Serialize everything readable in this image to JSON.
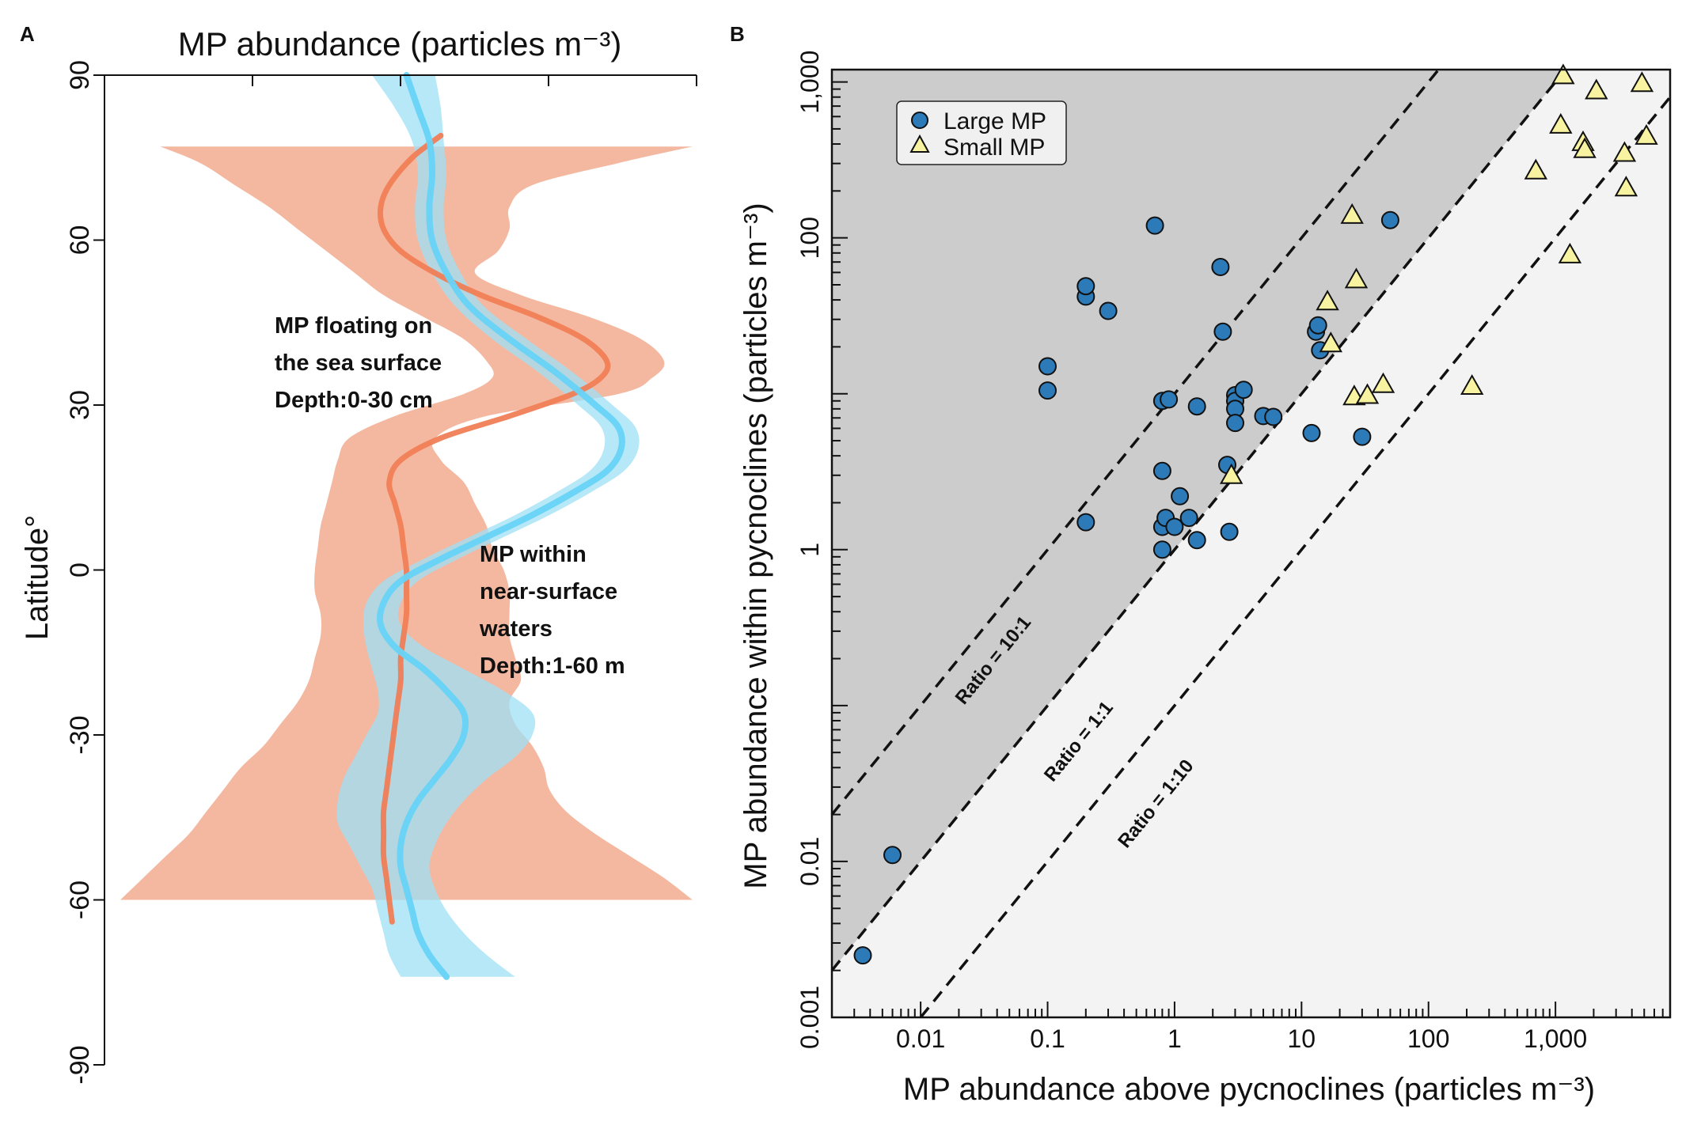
{
  "colors": {
    "orange_line": "#f07e56",
    "orange_band": "#f4b8a0",
    "blue_line": "#67d3f5",
    "blue_band": "#9fe0f6",
    "dark_region": "#cccccc",
    "light_region": "#f3f3f3",
    "large_mp": "#2c7ab8",
    "small_mp": "#f7f3a0",
    "label_orange": "#f28a65",
    "label_blue": "#7dd8f4"
  },
  "chart_data": [
    {
      "panel": "A",
      "type": "line",
      "title": "MP abundance (particles m⁻³)",
      "ylabel": "Latitude°",
      "ylim": [
        -90,
        90
      ],
      "yticks": [
        90,
        60,
        30,
        0,
        -30,
        -60,
        -90
      ],
      "ytick_labels": [
        "90",
        "60",
        "30",
        "0",
        "-30",
        "-60",
        "-90"
      ],
      "xticks_count": 5,
      "series": [
        {
          "name": "surface",
          "label_lines": [
            "MP floating on",
            "the sea surface",
            "Depth:0-30 cm"
          ],
          "lat": [
            79,
            75,
            70,
            66,
            62,
            58,
            54,
            50,
            46,
            42,
            38,
            35,
            32,
            28,
            24,
            20,
            16,
            12,
            8,
            4,
            0,
            -4,
            -8,
            -12,
            -16,
            -20,
            -24,
            -28,
            -32,
            -36,
            -40,
            -44,
            -48,
            -52,
            -56,
            -60,
            -64
          ],
          "mid": [
            0.56,
            0.51,
            0.47,
            0.455,
            0.46,
            0.49,
            0.55,
            0.63,
            0.73,
            0.81,
            0.85,
            0.84,
            0.79,
            0.68,
            0.56,
            0.49,
            0.47,
            0.48,
            0.49,
            0.495,
            0.5,
            0.5,
            0.5,
            0.495,
            0.49,
            0.49,
            0.485,
            0.48,
            0.475,
            0.47,
            0.465,
            0.46,
            0.46,
            0.46,
            0.465,
            0.47,
            0.475
          ],
          "band_lat": [
            77,
            74,
            70,
            66,
            62,
            58,
            54,
            50,
            46,
            42,
            38,
            35,
            32,
            28,
            24,
            20,
            16,
            12,
            8,
            4,
            0,
            -4,
            -8,
            -12,
            -16,
            -20,
            -24,
            -28,
            -32,
            -36,
            -40,
            -44,
            -48,
            -52,
            -56,
            -60
          ],
          "lower": [
            0.07,
            0.14,
            0.2,
            0.26,
            0.31,
            0.36,
            0.41,
            0.46,
            0.53,
            0.6,
            0.64,
            0.65,
            0.6,
            0.48,
            0.4,
            0.38,
            0.37,
            0.36,
            0.35,
            0.345,
            0.34,
            0.34,
            0.35,
            0.35,
            0.34,
            0.33,
            0.31,
            0.28,
            0.25,
            0.21,
            0.18,
            0.15,
            0.12,
            0.08,
            0.04,
            0.0
          ],
          "upper": [
            1.0,
            0.87,
            0.72,
            0.68,
            0.68,
            0.66,
            0.62,
            0.7,
            0.82,
            0.91,
            0.95,
            0.93,
            0.87,
            0.64,
            0.55,
            0.56,
            0.6,
            0.62,
            0.64,
            0.65,
            0.67,
            0.68,
            0.68,
            0.68,
            0.69,
            0.7,
            0.68,
            0.69,
            0.72,
            0.74,
            0.75,
            0.78,
            0.83,
            0.89,
            0.95,
            1.0
          ]
        },
        {
          "name": "near-surface",
          "label_lines": [
            "MP within",
            "near-surface",
            "waters",
            "Depth:1-60 m"
          ],
          "lat": [
            90,
            84,
            78,
            72,
            66,
            60,
            54,
            48,
            42,
            36,
            30,
            26,
            22,
            18,
            14,
            10,
            6,
            2,
            -2,
            -6,
            -10,
            -14,
            -18,
            -22,
            -26,
            -30,
            -34,
            -38,
            -42,
            -46,
            -50,
            -54,
            -58,
            -62,
            -66,
            -70,
            -74
          ],
          "mid": [
            0.5,
            0.52,
            0.54,
            0.545,
            0.54,
            0.545,
            0.57,
            0.61,
            0.68,
            0.76,
            0.83,
            0.87,
            0.875,
            0.85,
            0.79,
            0.72,
            0.64,
            0.56,
            0.49,
            0.46,
            0.455,
            0.48,
            0.53,
            0.57,
            0.6,
            0.6,
            0.58,
            0.55,
            0.52,
            0.5,
            0.49,
            0.49,
            0.5,
            0.51,
            0.52,
            0.54,
            0.57
          ],
          "band_lat": [
            90,
            84,
            78,
            72,
            66,
            60,
            54,
            48,
            42,
            36,
            30,
            26,
            22,
            18,
            14,
            10,
            6,
            2,
            -2,
            -6,
            -10,
            -14,
            -18,
            -22,
            -26,
            -30,
            -34,
            -38,
            -42,
            -46,
            -50,
            -54,
            -58,
            -62,
            -66,
            -70,
            -74
          ],
          "lower": [
            0.44,
            0.48,
            0.51,
            0.52,
            0.515,
            0.52,
            0.545,
            0.585,
            0.65,
            0.73,
            0.8,
            0.84,
            0.845,
            0.82,
            0.76,
            0.69,
            0.61,
            0.53,
            0.46,
            0.43,
            0.425,
            0.43,
            0.44,
            0.45,
            0.45,
            0.43,
            0.41,
            0.39,
            0.38,
            0.38,
            0.4,
            0.42,
            0.44,
            0.45,
            0.46,
            0.47,
            0.49
          ],
          "upper": [
            0.55,
            0.56,
            0.565,
            0.57,
            0.565,
            0.57,
            0.595,
            0.635,
            0.71,
            0.79,
            0.86,
            0.9,
            0.905,
            0.88,
            0.82,
            0.75,
            0.67,
            0.59,
            0.52,
            0.49,
            0.49,
            0.53,
            0.6,
            0.67,
            0.72,
            0.72,
            0.69,
            0.64,
            0.6,
            0.57,
            0.55,
            0.54,
            0.55,
            0.57,
            0.6,
            0.64,
            0.69
          ]
        }
      ]
    },
    {
      "panel": "B",
      "type": "scatter",
      "xlabel": "MP abundance above pycnoclines (particles m⁻³)",
      "ylabel": "MP abundance within pycnoclines (particles m⁻³)",
      "xscale": "log",
      "yscale": "log",
      "xlim": [
        0.002,
        8000
      ],
      "ylim": [
        0.001,
        1200
      ],
      "xticks": [
        0.01,
        0.1,
        1,
        10,
        100,
        1000
      ],
      "xtick_labels": [
        "0.01",
        "0.1",
        "1",
        "10",
        "100",
        "1,000"
      ],
      "yticks": [
        0.001,
        0.01,
        1,
        100,
        1000
      ],
      "ytick_labels": [
        "0.001",
        "0.01",
        "1",
        "100",
        "1,000"
      ],
      "ratio_lines": [
        {
          "ratio": 10,
          "label": "Ratio = 10:1",
          "label_x": 0.022,
          "label_y": 0.1
        },
        {
          "ratio": 1,
          "label": "Ratio = 1:1",
          "label_x": 0.11,
          "label_y": 0.032
        },
        {
          "ratio": 0.1,
          "label": "Ratio = 1:10",
          "label_x": 0.42,
          "label_y": 0.012
        }
      ],
      "legend_position": "top-left",
      "series": [
        {
          "name": "Large MP",
          "marker": "circle",
          "points": [
            [
              0.0035,
              0.0025
            ],
            [
              0.006,
              0.011
            ],
            [
              0.1,
              15
            ],
            [
              0.1,
              10.5
            ],
            [
              0.2,
              42
            ],
            [
              0.2,
              49
            ],
            [
              0.2,
              1.5
            ],
            [
              0.3,
              34
            ],
            [
              0.7,
              120
            ],
            [
              0.8,
              9
            ],
            [
              0.8,
              3.2
            ],
            [
              0.8,
              1.4
            ],
            [
              0.8,
              1.0
            ],
            [
              0.85,
              1.6
            ],
            [
              0.9,
              9.2
            ],
            [
              1.0,
              1.4
            ],
            [
              1.1,
              2.2
            ],
            [
              1.3,
              1.6
            ],
            [
              1.5,
              8.3
            ],
            [
              1.5,
              1.15
            ],
            [
              2.3,
              65
            ],
            [
              2.4,
              25
            ],
            [
              2.6,
              3.5
            ],
            [
              2.7,
              1.3
            ],
            [
              3.0,
              9.8
            ],
            [
              3.0,
              9.0
            ],
            [
              3.0,
              8.0
            ],
            [
              3.0,
              6.5
            ],
            [
              3.5,
              10.6
            ],
            [
              5.0,
              7.2
            ],
            [
              6.0,
              7.1
            ],
            [
              12,
              5.6
            ],
            [
              13,
              25
            ],
            [
              13.5,
              27.5
            ],
            [
              14,
              19
            ],
            [
              30,
              5.3
            ],
            [
              50,
              130
            ]
          ]
        },
        {
          "name": "Small MP",
          "marker": "triangle",
          "points": [
            [
              2.8,
              3.0
            ],
            [
              16,
              39
            ],
            [
              17,
              21
            ],
            [
              25,
              140
            ],
            [
              26,
              9.6
            ],
            [
              27,
              54
            ],
            [
              33,
              9.8
            ],
            [
              44,
              11.5
            ],
            [
              220,
              11.2
            ],
            [
              700,
              270
            ],
            [
              1100,
              530
            ],
            [
              1150,
              1100
            ],
            [
              1300,
              78
            ],
            [
              1650,
              410
            ],
            [
              1700,
              370
            ],
            [
              2100,
              880
            ],
            [
              3500,
              350
            ],
            [
              3600,
              210
            ],
            [
              4800,
              980
            ],
            [
              5200,
              450
            ]
          ]
        }
      ]
    }
  ]
}
